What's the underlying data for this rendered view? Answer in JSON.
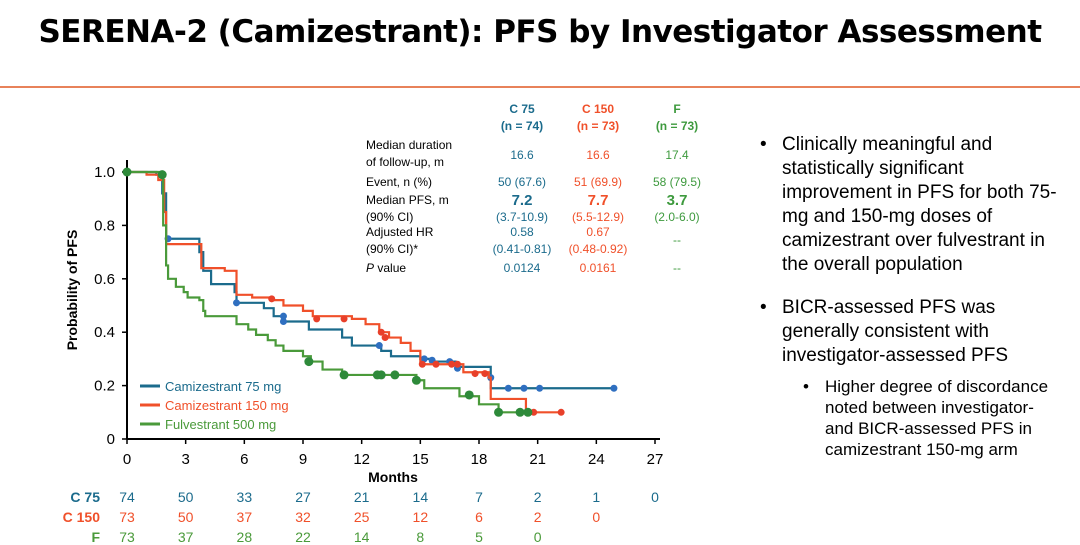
{
  "title": "SERENA-2 (Camizestrant): PFS by Investigator Assessment",
  "stats_table": {
    "columns": [
      {
        "name": "C 75",
        "n": "(n = 74)",
        "color": "#1b6b8c"
      },
      {
        "name": "C 150",
        "n": "(n = 73)",
        "color": "#f0502a"
      },
      {
        "name": "F",
        "n": "(n = 73)",
        "color": "#3e9a3e"
      }
    ],
    "rows": [
      {
        "label": [
          "Median duration",
          "of follow-up, m"
        ],
        "values": [
          "16.6",
          "16.6",
          "17.4"
        ]
      },
      {
        "label": [
          "Event, n (%)"
        ],
        "values": [
          "50 (67.6)",
          "51 (69.9)",
          "58 (79.5)"
        ]
      },
      {
        "label": [
          "Median PFS, m",
          "(90% CI)"
        ],
        "values": [
          "7.2",
          "7.7",
          "3.7"
        ],
        "ci": [
          "(3.7-10.9)",
          "(5.5-12.9)",
          "(2.0-6.0)"
        ]
      },
      {
        "label": [
          "Adjusted HR",
          "(90% CI)*"
        ],
        "values": [
          "0.58",
          "0.67",
          "--"
        ],
        "ci": [
          "(0.41-0.81)",
          "(0.48-0.92)",
          ""
        ]
      },
      {
        "label": [
          "P value"
        ],
        "values": [
          "0.0124",
          "0.0161",
          "--"
        ]
      }
    ]
  },
  "bullets": [
    "Clinically meaningful and statistically significant improvement in PFS for both 75-mg and 150-mg doses of camizestrant over fulvestrant in the overall population",
    "BICR-assessed PFS was generally consistent with investigator-assessed PFS"
  ],
  "sub_bullets": [
    "Higher degree of discordance noted between investigator- and BICR-assessed PFS in camizestrant 150-mg arm"
  ],
  "risk_table": {
    "times": [
      0,
      3,
      6,
      9,
      12,
      15,
      18,
      21,
      24,
      27
    ],
    "rows": [
      {
        "label": "C 75",
        "values": [
          "74",
          "50",
          "33",
          "27",
          "21",
          "14",
          "7",
          "2",
          "1",
          "0"
        ]
      },
      {
        "label": "C 150",
        "values": [
          "73",
          "50",
          "37",
          "32",
          "25",
          "12",
          "6",
          "2",
          "0",
          ""
        ]
      },
      {
        "label": "F",
        "values": [
          "73",
          "37",
          "28",
          "22",
          "14",
          "8",
          "5",
          "0",
          "",
          ""
        ]
      }
    ]
  },
  "chart_data": {
    "type": "line",
    "subtype": "kaplan-meier step",
    "xlabel": "Months",
    "ylabel": "Probability of PFS",
    "xlim": [
      0,
      27
    ],
    "ylim": [
      0,
      1.0
    ],
    "xticks": [
      0,
      3,
      6,
      9,
      12,
      15,
      18,
      21,
      24,
      27
    ],
    "yticks": [
      "0",
      "0.2",
      "0.4",
      "0.6",
      "0.8",
      "1.0"
    ],
    "ytick_values": [
      0,
      0.2,
      0.4,
      0.6,
      0.8,
      1.0
    ],
    "legend_position": "bottom-left",
    "series": [
      {
        "name": "Camizestrant 75 mg",
        "color": "#1b6b8c",
        "censor_color": "#2f6fc0",
        "steps": [
          [
            0,
            1.0
          ],
          [
            1.5,
            0.99
          ],
          [
            1.8,
            0.92
          ],
          [
            2.0,
            0.75
          ],
          [
            3.7,
            0.7
          ],
          [
            3.9,
            0.63
          ],
          [
            4.3,
            0.58
          ],
          [
            5.5,
            0.55
          ],
          [
            5.6,
            0.51
          ],
          [
            7.0,
            0.49
          ],
          [
            7.5,
            0.46
          ],
          [
            8.0,
            0.44
          ],
          [
            9.3,
            0.41
          ],
          [
            11.0,
            0.38
          ],
          [
            11.5,
            0.35
          ],
          [
            13.0,
            0.33
          ],
          [
            13.5,
            0.31
          ],
          [
            15.0,
            0.3
          ],
          [
            15.5,
            0.29
          ],
          [
            16.8,
            0.27
          ],
          [
            18.6,
            0.19
          ],
          [
            24.9,
            0.19
          ]
        ],
        "censored": [
          [
            2.1,
            0.75
          ],
          [
            5.6,
            0.51
          ],
          [
            8.0,
            0.46
          ],
          [
            8.0,
            0.44
          ],
          [
            12.9,
            0.35
          ],
          [
            15.2,
            0.3
          ],
          [
            15.6,
            0.295
          ],
          [
            16.5,
            0.29
          ],
          [
            16.9,
            0.265
          ],
          [
            18.6,
            0.23
          ],
          [
            19.5,
            0.19
          ],
          [
            20.3,
            0.19
          ],
          [
            21.1,
            0.19
          ],
          [
            24.9,
            0.19
          ]
        ]
      },
      {
        "name": "Camizestrant 150 mg",
        "color": "#f0502a",
        "censor_color": "#e8402a",
        "steps": [
          [
            0,
            1.0
          ],
          [
            1.0,
            0.99
          ],
          [
            1.6,
            0.97
          ],
          [
            1.9,
            0.85
          ],
          [
            2.0,
            0.73
          ],
          [
            3.8,
            0.64
          ],
          [
            5.0,
            0.63
          ],
          [
            5.6,
            0.54
          ],
          [
            6.4,
            0.53
          ],
          [
            7.4,
            0.52
          ],
          [
            8.0,
            0.5
          ],
          [
            9.0,
            0.48
          ],
          [
            9.5,
            0.46
          ],
          [
            11.5,
            0.45
          ],
          [
            12.2,
            0.43
          ],
          [
            12.9,
            0.4
          ],
          [
            13.4,
            0.38
          ],
          [
            14.0,
            0.36
          ],
          [
            14.5,
            0.33
          ],
          [
            15.0,
            0.28
          ],
          [
            17.2,
            0.25
          ],
          [
            18.5,
            0.23
          ],
          [
            18.6,
            0.15
          ],
          [
            20.4,
            0.1
          ],
          [
            22.2,
            0.1
          ]
        ],
        "censored": [
          [
            7.4,
            0.525
          ],
          [
            9.7,
            0.45
          ],
          [
            11.1,
            0.45
          ],
          [
            13.0,
            0.4
          ],
          [
            13.2,
            0.38
          ],
          [
            15.1,
            0.28
          ],
          [
            15.8,
            0.28
          ],
          [
            16.6,
            0.28
          ],
          [
            16.9,
            0.28
          ],
          [
            17.8,
            0.245
          ],
          [
            18.3,
            0.245
          ],
          [
            20.8,
            0.1
          ],
          [
            22.2,
            0.1
          ]
        ]
      },
      {
        "name": "Fulvestrant 500 mg",
        "color": "#4a9a3a",
        "censor_color": "#2e8a3a",
        "steps": [
          [
            0,
            1.0
          ],
          [
            1.7,
            0.99
          ],
          [
            1.85,
            0.8
          ],
          [
            2.0,
            0.65
          ],
          [
            2.1,
            0.6
          ],
          [
            2.5,
            0.57
          ],
          [
            2.9,
            0.55
          ],
          [
            3.1,
            0.53
          ],
          [
            3.7,
            0.52
          ],
          [
            3.9,
            0.48
          ],
          [
            4.0,
            0.46
          ],
          [
            5.6,
            0.43
          ],
          [
            6.2,
            0.41
          ],
          [
            6.6,
            0.39
          ],
          [
            7.2,
            0.37
          ],
          [
            7.6,
            0.35
          ],
          [
            8.0,
            0.33
          ],
          [
            9.0,
            0.31
          ],
          [
            9.4,
            0.29
          ],
          [
            10.0,
            0.26
          ],
          [
            11.0,
            0.24
          ],
          [
            14.8,
            0.22
          ],
          [
            15.2,
            0.19
          ],
          [
            17.0,
            0.16
          ],
          [
            18.0,
            0.13
          ],
          [
            19.0,
            0.1
          ],
          [
            20.5,
            0.1
          ]
        ],
        "censored": [
          [
            0,
            1.0
          ],
          [
            1.8,
            0.99
          ],
          [
            9.3,
            0.29
          ],
          [
            11.1,
            0.24
          ],
          [
            12.8,
            0.24
          ],
          [
            13.0,
            0.24
          ],
          [
            13.7,
            0.24
          ],
          [
            14.8,
            0.22
          ],
          [
            17.5,
            0.165
          ],
          [
            19.0,
            0.1
          ],
          [
            20.1,
            0.1
          ],
          [
            20.5,
            0.1
          ]
        ]
      }
    ]
  }
}
